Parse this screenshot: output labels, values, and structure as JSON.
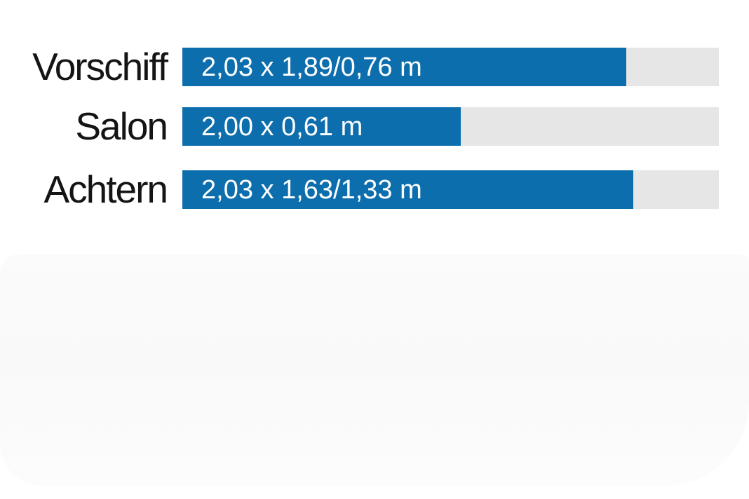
{
  "chart_data": {
    "type": "bar",
    "orientation": "horizontal",
    "title": "",
    "subtitle": "",
    "unit": "m",
    "grid": false,
    "legend": "none",
    "categories": [
      "Vorschiff",
      "Salon",
      "Achtern"
    ],
    "bar_labels": [
      "2,03 x 1,89/0,76 m",
      "2,00 x 0,61 m",
      "2,03 x 1,63/1,33 m"
    ],
    "values_fraction_of_track": [
      0.827,
      0.519,
      0.841
    ],
    "dimensions_m": [
      {
        "length": 2.03,
        "width_head": 1.89,
        "width_foot": 0.76
      },
      {
        "length": 2.0,
        "width_head": 0.61
      },
      {
        "length": 2.03,
        "width_head": 1.63,
        "width_foot": 1.33
      }
    ],
    "colors": {
      "bar_fill": "#0d6ead",
      "bar_track": "#e6e6e6",
      "category_text": "#141414",
      "value_text": "#ffffff"
    }
  },
  "rows": [
    {
      "label": "Vorschiff",
      "value_text": "2,03 x 1,89/0,76 m",
      "width_css": "633px"
    },
    {
      "label": "Salon",
      "value_text": "2,00 x 0,61 m",
      "width_css": "397px"
    },
    {
      "label": "Achtern",
      "value_text": "2,03 x 1,63/1,33 m",
      "width_css": "643px"
    }
  ]
}
